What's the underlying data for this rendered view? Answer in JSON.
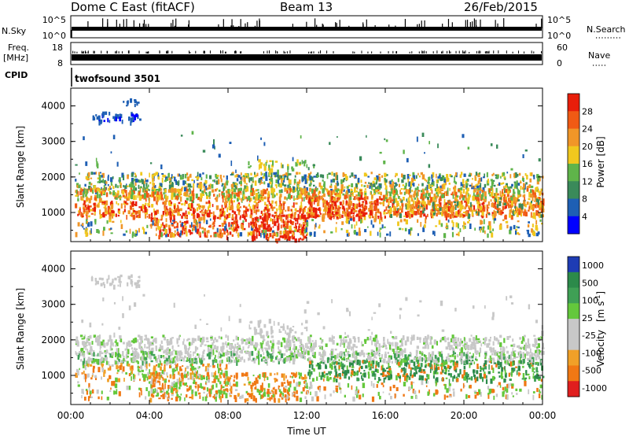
{
  "header": {
    "radar": "Dome C East (fitACF)",
    "beam": "Beam 13",
    "date": "26/Feb/2015"
  },
  "strips": {
    "nsky_label": "N.Sky",
    "nsky_ticks": [
      "10^5",
      "10^0"
    ],
    "nsearch_label": "N.Search",
    "nsearch_ticks": [
      "10^5",
      "10^0"
    ],
    "freq_label": "Freq.",
    "freq_unit": "[MHz]",
    "freq_ticks": [
      "18",
      "8"
    ],
    "nave_label": "Nave",
    "nave_ticks": [
      "60",
      "0"
    ],
    "cpid_label": "CPID",
    "cpid_value": "twofsound 3501"
  },
  "chart_data": [
    {
      "type": "heatmap",
      "name": "power",
      "ylabel": "Slant Range [km]",
      "xlabel": "",
      "ylim": [
        180,
        4500
      ],
      "xlim": [
        0,
        24
      ],
      "yticks": [
        "1000",
        "2000",
        "3000",
        "4000"
      ],
      "colorbar": {
        "label": "Power [dB]",
        "ticks": [
          "4",
          "8",
          "12",
          "16",
          "20",
          "24",
          "28"
        ],
        "colors": [
          "#0000ff",
          "#1e5fb4",
          "#3a8a5a",
          "#5fb44a",
          "#f0c81e",
          "#f09628",
          "#f05a14",
          "#e81e0a"
        ]
      }
    },
    {
      "type": "heatmap",
      "name": "velocity",
      "ylabel": "Slant Range [km]",
      "xlabel": "Time UT",
      "ylim": [
        180,
        4500
      ],
      "xlim": [
        0,
        24
      ],
      "yticks": [
        "1000",
        "2000",
        "3000",
        "4000"
      ],
      "xticks": [
        "00:00",
        "04:00",
        "08:00",
        "12:00",
        "16:00",
        "20:00",
        "00:00"
      ],
      "colorbar": {
        "label": "Velocity",
        "unit": "[m s",
        "unit_sup": "-1",
        "unit_close": "]",
        "ticks": [
          "1000",
          "500",
          "100",
          "25",
          "-25",
          "-100",
          "-500",
          "-1000"
        ],
        "colors": [
          "#1e3cb4",
          "#2c8a4a",
          "#3fa055",
          "#64c83c",
          "#c8c8c8",
          "#c8c8c8",
          "#f0a028",
          "#f07814",
          "#e01e1e"
        ]
      }
    }
  ]
}
